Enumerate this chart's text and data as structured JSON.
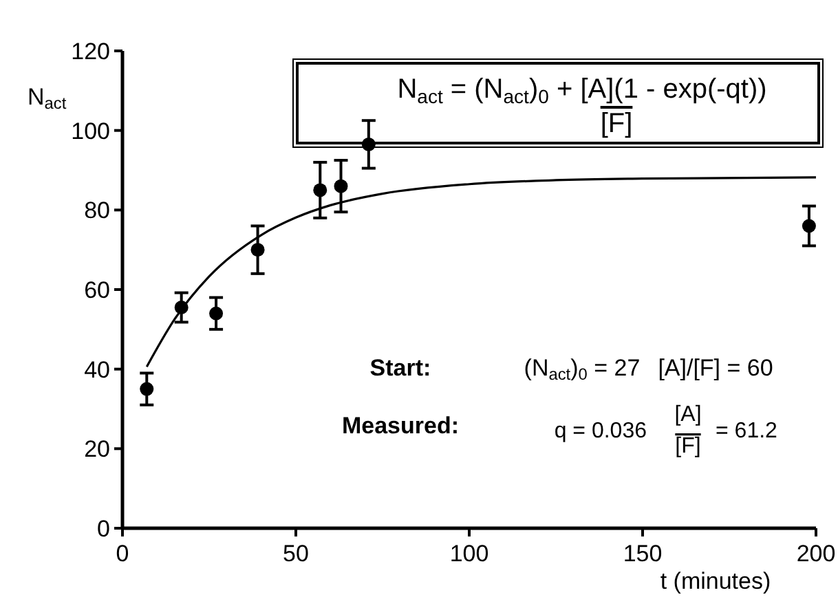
{
  "chart_data": {
    "type": "scatter",
    "xlabel": "t  (minutes)",
    "ylabel": "N$_{act}$",
    "xlim": [
      0,
      200
    ],
    "xticks": [
      0,
      50,
      100,
      150,
      200
    ],
    "ylim": [
      0,
      120
    ],
    "yticks": [
      0,
      20,
      40,
      60,
      80,
      100,
      120
    ],
    "grid": false,
    "marker": "circle",
    "series": [
      {
        "color": "#000000",
        "x": [
          7,
          17,
          27,
          39,
          57,
          63,
          71,
          198
        ],
        "values": [
          35,
          55.5,
          54,
          70,
          85,
          86,
          96.5,
          76
        ],
        "errors": [
          4,
          3.7,
          4,
          6,
          7,
          6.5,
          6,
          5
        ]
      },
      {
        "type": "line",
        "color": "#000000",
        "marker": "none",
        "line_style": "solid",
        "x": [
          7,
          15,
          25,
          40,
          50,
          60,
          75,
          100,
          125,
          150,
          200
        ],
        "values": [
          40.6,
          52.5,
          63.3,
          73.7,
          78.1,
          81.2,
          84.1,
          86.5,
          87.5,
          87.9,
          88.2
        ]
      }
    ],
    "annotations": [
      "N$_{act}$ = (N$_{act}$)$_{0}$ + [A](1 - exp(-qt))",
      "[F]",
      "Start:",
      "(N$_{act}$)$_{0}$ = 27",
      "[A]/[F] = 60",
      "Measured:",
      "q = 0.036",
      "[A]",
      "[F]",
      "= 61.2"
    ]
  }
}
